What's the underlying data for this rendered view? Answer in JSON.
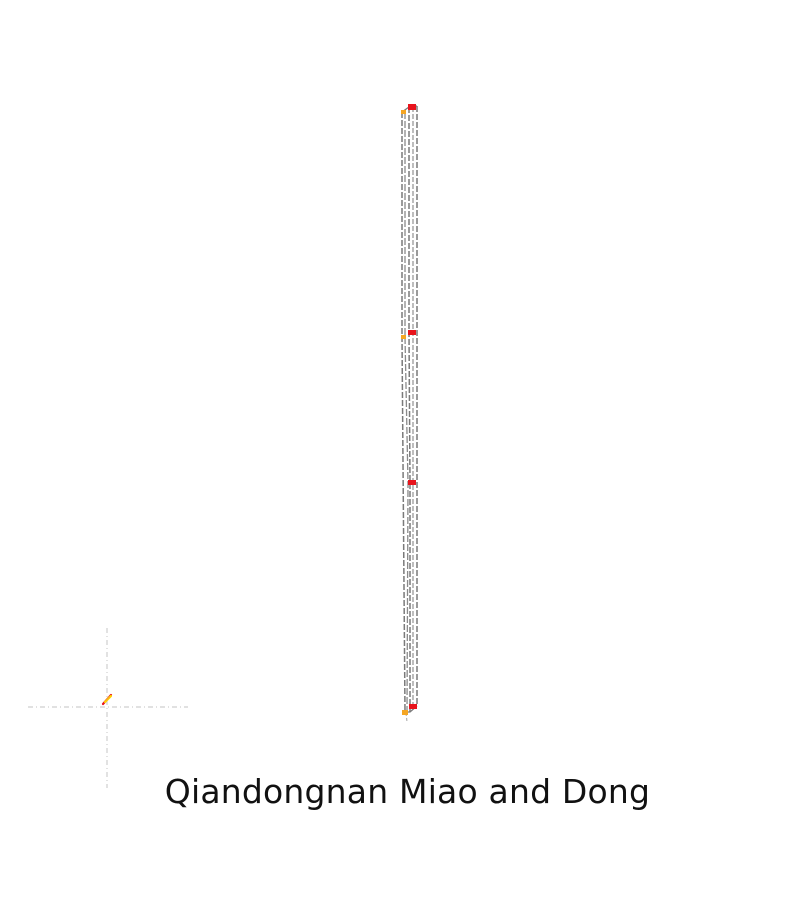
{
  "caption": "Qiandongnan Miao and Dong",
  "colors": {
    "background": "#ffffff",
    "route_line": "#7a7a7a",
    "route_line_light": "#b0b0b0",
    "red_marker": "#e8141c",
    "orange_marker": "#f5a623",
    "yellow_marker": "#ffd200",
    "crosshair": "#cfcfcf"
  },
  "markers": [
    {
      "name": "marker-red-top",
      "color": "red"
    },
    {
      "name": "marker-orange-top",
      "color": "orange"
    },
    {
      "name": "marker-red-upper-mid",
      "color": "red"
    },
    {
      "name": "marker-orange-upper-mid",
      "color": "orange"
    },
    {
      "name": "marker-red-mid",
      "color": "red"
    },
    {
      "name": "marker-red-bottom",
      "color": "red"
    },
    {
      "name": "marker-orange-bottom",
      "color": "orange"
    }
  ]
}
